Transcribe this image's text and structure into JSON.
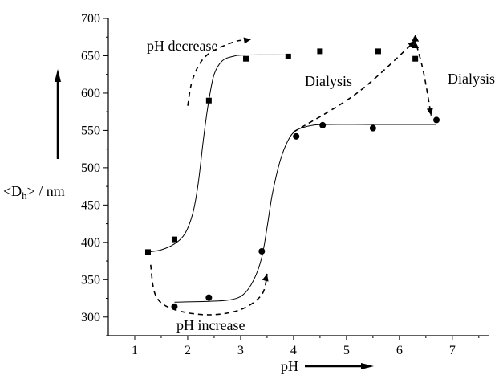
{
  "chart_data": {
    "type": "scatter",
    "title": "",
    "xlabel": "pH",
    "ylabel_main": "<D",
    "ylabel_sub": "h",
    "ylabel_tail": "> / nm",
    "xlim": [
      0.5,
      7.7
    ],
    "ylim": [
      275,
      700
    ],
    "xticks": [
      1,
      2,
      3,
      4,
      5,
      6,
      7
    ],
    "yticks": [
      300,
      350,
      400,
      450,
      500,
      550,
      600,
      650,
      700
    ],
    "grid": false,
    "legend": "none",
    "series": [
      {
        "marker": "square",
        "x": [
          1.25,
          1.75,
          2.4,
          3.1,
          3.9,
          4.5,
          5.6,
          6.3
        ],
        "y": [
          387,
          404,
          590,
          646,
          649,
          656,
          656,
          646
        ],
        "fit": [
          [
            1.25,
            387
          ],
          [
            1.5,
            390
          ],
          [
            1.75,
            398
          ],
          [
            1.95,
            412
          ],
          [
            2.1,
            440
          ],
          [
            2.2,
            480
          ],
          [
            2.3,
            540
          ],
          [
            2.4,
            590
          ],
          [
            2.5,
            625
          ],
          [
            2.65,
            643
          ],
          [
            2.85,
            649
          ],
          [
            3.1,
            651
          ],
          [
            4,
            651
          ],
          [
            5,
            651
          ],
          [
            6.3,
            651
          ]
        ]
      },
      {
        "marker": "circle",
        "x": [
          1.75,
          2.4,
          3.4,
          4.05,
          4.55,
          5.5,
          6.7
        ],
        "y": [
          314,
          326,
          388,
          542,
          557,
          553,
          564
        ],
        "fit": [
          [
            1.75,
            320
          ],
          [
            2.4,
            321
          ],
          [
            2.8,
            323
          ],
          [
            3.05,
            330
          ],
          [
            3.25,
            350
          ],
          [
            3.4,
            380
          ],
          [
            3.5,
            420
          ],
          [
            3.6,
            465
          ],
          [
            3.75,
            510
          ],
          [
            3.9,
            537
          ],
          [
            4.05,
            550
          ],
          [
            4.3,
            556
          ],
          [
            4.6,
            558
          ],
          [
            5.5,
            558
          ],
          [
            6.7,
            558
          ]
        ]
      },
      {
        "marker": "triangle",
        "x": [
          6.3,
          6.3
        ],
        "y": [
          673,
          664
        ]
      }
    ],
    "arrows": [
      {
        "label": "pH decrease",
        "path": [
          [
            2.0,
            583
          ],
          [
            2.1,
            620
          ],
          [
            2.35,
            650
          ],
          [
            2.85,
            668
          ],
          [
            3.2,
            672
          ]
        ]
      },
      {
        "label": "pH increase",
        "path": [
          [
            1.3,
            370
          ],
          [
            1.4,
            328
          ],
          [
            1.75,
            310
          ],
          [
            2.4,
            303
          ],
          [
            3.0,
            310
          ],
          [
            3.4,
            330
          ],
          [
            3.5,
            358
          ]
        ]
      },
      {
        "label": "Dialysis",
        "path": [
          [
            4.0,
            548
          ],
          [
            5.2,
            600
          ],
          [
            6.3,
            670
          ]
        ]
      },
      {
        "label": "Dialysis",
        "path": [
          [
            6.28,
            675
          ],
          [
            6.45,
            630
          ],
          [
            6.6,
            570
          ]
        ]
      }
    ],
    "annotations": [
      "pH decrease",
      "Dialysis",
      "Dialysis",
      "pH increase"
    ]
  }
}
